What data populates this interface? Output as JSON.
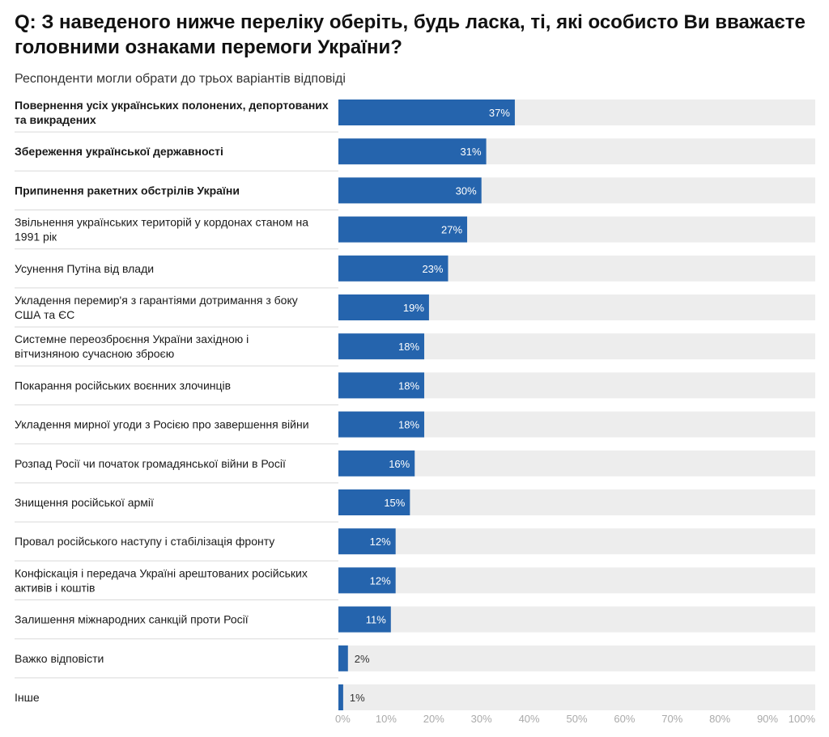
{
  "title": "Q: З наведеного нижче переліку оберіть, будь ласка, ті, які особисто Ви вважаєте головними ознаками перемоги України?",
  "subtitle": "Респонденти могли обрати до трьох варіантів відповіді",
  "colors": {
    "bar": "#2564ad",
    "track": "#ededed",
    "label_in": "#ffffff",
    "label_out": "#333333",
    "tick": "#aaaaaa",
    "separator": "#d9d9d9"
  },
  "chart_data": {
    "type": "bar",
    "orientation": "horizontal",
    "title": "Q: З наведеного нижче переліку оберіть, будь ласка, ті, які особисто Ви вважаєте головними ознаками перемоги України?",
    "subtitle": "Респонденти могли обрати до трьох варіантів відповіді",
    "categories": [
      "Повернення усіх українських полонених, депортованих та викрадених",
      "Збереження української державності",
      "Припинення ракетних обстрілів України",
      "Звільнення українських територій у кордонах станом на 1991 рік",
      "Усунення Путіна від влади",
      "Укладення перемир'я з гарантіями дотримання з боку США та ЄС",
      "Системне переозброєння України західною і вітчизняною сучасною зброєю",
      "Покарання російських воєнних злочинців",
      "Укладення мирної угоди з Росією про завершення війни",
      "Розпад Росії чи початок громадянської війни в Росії",
      "Знищення російської армії",
      "Провал російського наступу і стабілізація фронту",
      "Конфіскація і передача Україні арештованих російських активів і коштів",
      "Залишення міжнародних санкцій проти Росії",
      "Важко відповісти",
      "Інше"
    ],
    "category_lines": [
      [
        "Повернення усіх українських полонених, депортованих",
        "та викрадених"
      ],
      [
        "Збереження української державності"
      ],
      [
        "Припинення ракетних обстрілів України"
      ],
      [
        "Звільнення українських територій у кордонах станом на",
        "1991 рік"
      ],
      [
        "Усунення Путіна від влади"
      ],
      [
        "Укладення перемир'я з гарантіями дотримання з боку",
        "США та ЄС"
      ],
      [
        "Системне переозброєння України західною і",
        "вітчизняною сучасною зброєю"
      ],
      [
        "Покарання російських воєнних злочинців"
      ],
      [
        "Укладення мирної угоди з Росією про завершення війни"
      ],
      [
        "Розпад Росії чи початок громадянської війни в Росії"
      ],
      [
        "Знищення російської армії"
      ],
      [
        "Провал російського наступу і стабілізація фронту"
      ],
      [
        "Конфіскація і передача Україні арештованих російських",
        "активів і коштів"
      ],
      [
        "Залишення міжнародних санкцій проти Росії"
      ],
      [
        "Важко відповісти"
      ],
      [
        "Інше"
      ]
    ],
    "bold_categories": [
      0,
      1,
      2
    ],
    "values": [
      37,
      31,
      30,
      27,
      23,
      19,
      18,
      18,
      18,
      16,
      15,
      12,
      12,
      11,
      2,
      1
    ],
    "value_labels": [
      "37%",
      "31%",
      "30%",
      "27%",
      "23%",
      "19%",
      "18%",
      "18%",
      "18%",
      "16%",
      "15%",
      "12%",
      "12%",
      "11%",
      "2%",
      "1%"
    ],
    "xlim": [
      0,
      100
    ],
    "xticks": [
      "0%",
      "10%",
      "20%",
      "30%",
      "40%",
      "50%",
      "60%",
      "70%",
      "80%",
      "90%",
      "100%"
    ],
    "grid": true,
    "legend": "none"
  }
}
